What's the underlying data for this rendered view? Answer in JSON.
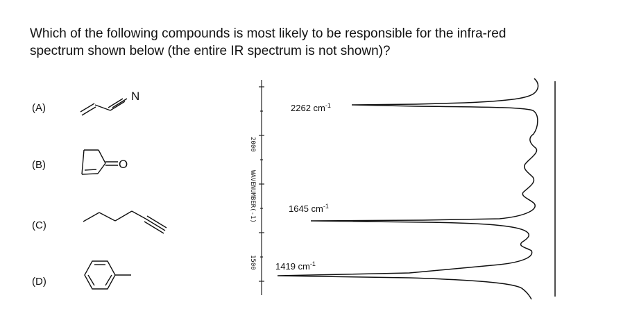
{
  "question": {
    "line1": "Which of the following compounds is most likely to be responsible for the infra-red",
    "line2": "spectrum shown below (the entire IR spectrum is not shown)?"
  },
  "options": [
    {
      "label": "(A)",
      "structure": "allyl-cyanide",
      "atom": "N"
    },
    {
      "label": "(B)",
      "structure": "cyclopentenone",
      "atom": "O"
    },
    {
      "label": "(C)",
      "structure": "1-hexyne",
      "atom": ""
    },
    {
      "label": "(D)",
      "structure": "toluene",
      "atom": ""
    }
  ],
  "spectrum": {
    "axis_label": "WAVENUMBER(-1)",
    "tick_labels": [
      "2000",
      "1500"
    ],
    "peaks": [
      {
        "wavenumber": "2262",
        "unit": "cm",
        "exponent": "-1"
      },
      {
        "wavenumber": "1645",
        "unit": "cm",
        "exponent": "-1"
      },
      {
        "wavenumber": "1419",
        "unit": "cm",
        "exponent": "-1"
      }
    ]
  }
}
